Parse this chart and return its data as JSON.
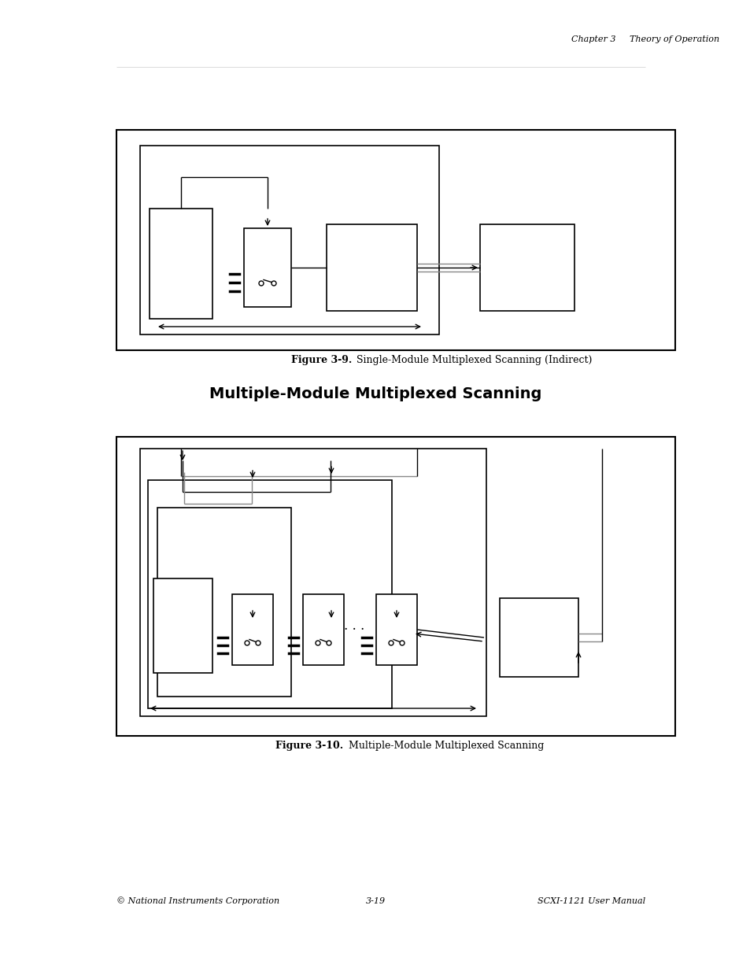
{
  "page_bg": "#ffffff",
  "header_text": "Chapter 3     Theory of Operation",
  "section_title": "Multiple-Module Multiplexed Scanning",
  "fig1_caption_bold": "Figure 3-9.",
  "fig1_caption_rest": "  Single-Module Multiplexed Scanning (Indirect)",
  "fig2_caption_bold": "Figure 3-10.",
  "fig2_caption_rest": "  Multiple-Module Multiplexed Scanning",
  "footer_left": "© National Instruments Corporation",
  "footer_center": "3-19",
  "footer_right": "SCXI-1121 User Manual",
  "line_color": "#000000",
  "gray_line": "#888888",
  "box_bg": "#ffffff"
}
